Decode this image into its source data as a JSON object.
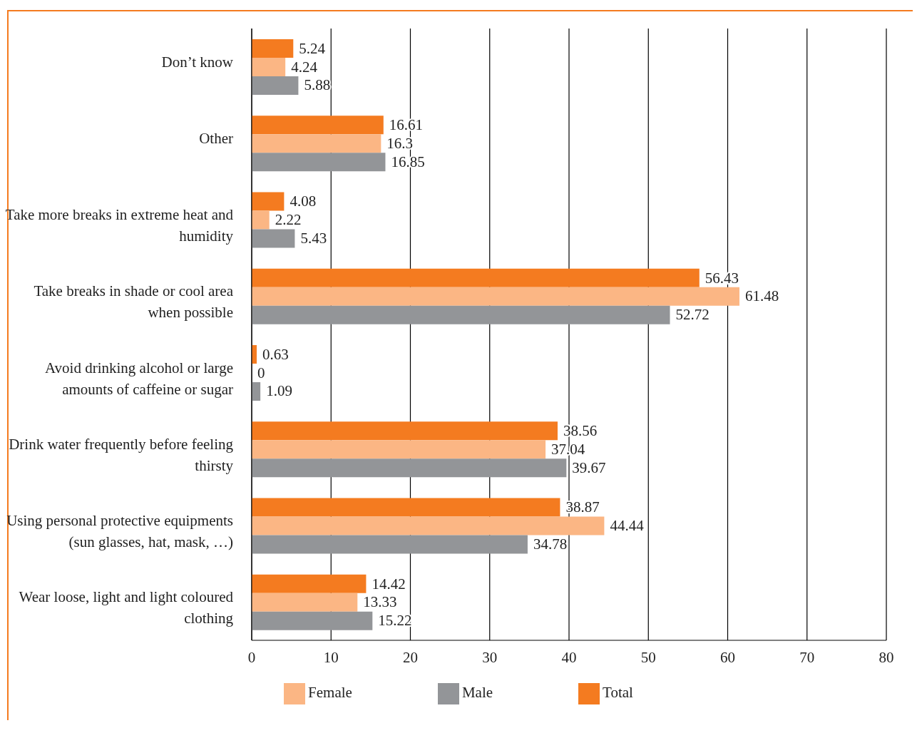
{
  "chart_data": {
    "type": "bar",
    "orientation": "horizontal",
    "categories": [
      "Don’t know",
      "Other",
      "Take more breaks in extreme heat and humidity",
      "Take breaks in shade or cool area when possible",
      "Avoid drinking alcohol or large amounts of caffeine or sugar",
      "Drink water frequently before feeling thirsty",
      "Using personal protective equipments (sun glasses, hat, mask, …)",
      "Wear loose, light and light coloured clothing"
    ],
    "series": [
      {
        "name": "Total",
        "color": "#f47b20",
        "values": [
          5.24,
          16.61,
          4.08,
          56.43,
          0.63,
          38.56,
          38.87,
          14.42
        ]
      },
      {
        "name": "Female",
        "color": "#fbb684",
        "values": [
          4.24,
          16.3,
          2.22,
          61.48,
          0,
          37.04,
          44.44,
          13.33
        ]
      },
      {
        "name": "Male",
        "color": "#939598",
        "values": [
          5.88,
          16.85,
          5.43,
          52.72,
          1.09,
          39.67,
          34.78,
          15.22
        ]
      }
    ],
    "xlim": [
      0,
      80
    ],
    "xticks": [
      0,
      10,
      20,
      30,
      40,
      50,
      60,
      70,
      80
    ],
    "grid": "x",
    "legend": "bottom",
    "data_labels": true
  }
}
